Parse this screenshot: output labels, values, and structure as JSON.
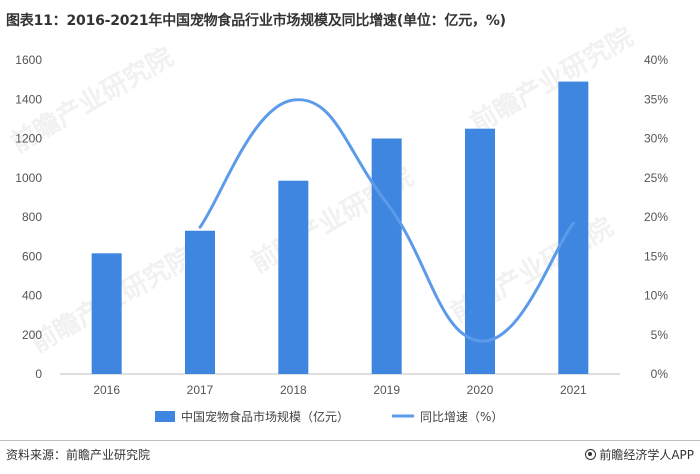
{
  "title": "图表11：2016-2021年中国宠物食品行业市场规模及同比增速(单位：亿元，%)",
  "source": "资料来源：前瞻产业研究院",
  "brand": "前瞻经济学人APP",
  "watermark": "前瞻产业研究院",
  "colors": {
    "bar": "#3e86e0",
    "line": "#5b9bea",
    "axis": "#bfbfbf"
  },
  "chart_data": {
    "type": "bar",
    "categories": [
      "2016",
      "2017",
      "2018",
      "2019",
      "2020",
      "2021"
    ],
    "series": [
      {
        "name": "中国宠物食品市场规模（亿元）",
        "type": "bar",
        "axis": "left",
        "values": [
          615,
          730,
          985,
          1200,
          1250,
          1490
        ]
      },
      {
        "name": "同比增速（%）",
        "type": "line",
        "axis": "right",
        "values": [
          null,
          18.7,
          34.9,
          21.8,
          4.2,
          19.2
        ]
      }
    ],
    "y_left": {
      "min": 0,
      "max": 1600,
      "ticks": [
        "0",
        "200",
        "400",
        "600",
        "800",
        "1000",
        "1200",
        "1400",
        "1600"
      ]
    },
    "y_right": {
      "min": 0,
      "max": 40,
      "ticks": [
        "0%",
        "5%",
        "10%",
        "15%",
        "20%",
        "25%",
        "30%",
        "35%",
        "40%"
      ]
    },
    "grid": false,
    "legend": "bottom"
  }
}
